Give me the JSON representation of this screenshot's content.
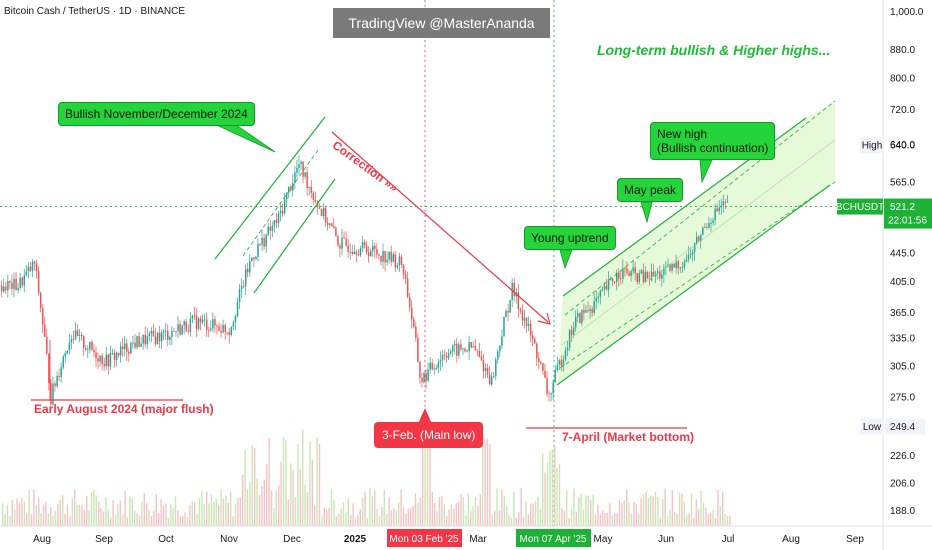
{
  "header": {
    "symbol_line": "Bitcoin Cash / TetherUS · 1D · BINANCE"
  },
  "watermark": "TradingView @MasterAnanda",
  "headline": "Long-term bullish & Higher highs...",
  "annotations": {
    "bullish_nov_dec": "Bullish November/December 2024",
    "correction": "Correction »»",
    "young_uptrend": "Young uptrend",
    "may_peak": "May peak",
    "new_high_line1": "New high",
    "new_high_line2": "(Bullish continuation)",
    "early_august": "Early August 2024 (major flush)",
    "main_low": "3-Feb. (Main low)",
    "market_bottom": "7-April (Market bottom)"
  },
  "price_tags": {
    "high_label": "High",
    "high_value": "640.0",
    "low_label": "Low",
    "low_value": "249.4",
    "symbol": "BCHUSDT",
    "last_price": "521.2",
    "countdown": "22:01:56"
  },
  "x_axis": {
    "labels": [
      "Aug",
      "Sep",
      "Oct",
      "Nov",
      "Dec",
      "2025",
      "Mar",
      "May",
      "Jun",
      "Jul",
      "Aug",
      "Sep"
    ],
    "highlight_feb": "Mon 03 Feb '25",
    "highlight_apr": "Mon 07 Apr '25"
  },
  "y_axis": {
    "ticks": [
      "1,000.0",
      "880.0",
      "800.0",
      "720.0",
      "640.0",
      "565.0",
      "521.2",
      "445.0",
      "405.0",
      "365.0",
      "335.0",
      "305.0",
      "275.0",
      "249.4",
      "226.0",
      "206.0",
      "188.0"
    ],
    "scale": "log"
  },
  "colors": {
    "up": "#26a69a",
    "down": "#ef5350",
    "green_up": "#1db236",
    "red_down": "#f23645",
    "channel": "#d6f5c0",
    "accent": "#24d43a"
  },
  "chart_data": {
    "type": "candlestick",
    "title": "Bitcoin Cash / TetherUS · 1D · BINANCE",
    "y_scale": "log",
    "ylim": [
      180,
      1000
    ],
    "x_range": [
      "2024-07-18",
      "2025-09-20"
    ],
    "series": [
      {
        "name": "BCHUSDT",
        "values_approx": [
          {
            "date": "2024-07-20",
            "close": 400
          },
          {
            "date": "2024-07-28",
            "close": 430
          },
          {
            "date": "2024-08-05",
            "close": 275
          },
          {
            "date": "2024-08-15",
            "close": 340
          },
          {
            "date": "2024-09-01",
            "close": 310
          },
          {
            "date": "2024-09-15",
            "close": 330
          },
          {
            "date": "2024-10-01",
            "close": 340
          },
          {
            "date": "2024-10-15",
            "close": 355
          },
          {
            "date": "2024-11-01",
            "close": 345
          },
          {
            "date": "2024-11-12",
            "close": 440
          },
          {
            "date": "2024-11-25",
            "close": 500
          },
          {
            "date": "2024-12-05",
            "close": 600
          },
          {
            "date": "2024-12-15",
            "close": 520
          },
          {
            "date": "2024-12-25",
            "close": 460
          },
          {
            "date": "2025-01-10",
            "close": 450
          },
          {
            "date": "2025-01-25",
            "close": 430
          },
          {
            "date": "2025-02-03",
            "close": 290
          },
          {
            "date": "2025-02-15",
            "close": 320
          },
          {
            "date": "2025-03-01",
            "close": 325
          },
          {
            "date": "2025-03-10",
            "close": 290
          },
          {
            "date": "2025-03-20",
            "close": 395
          },
          {
            "date": "2025-04-01",
            "close": 320
          },
          {
            "date": "2025-04-07",
            "close": 275
          },
          {
            "date": "2025-04-20",
            "close": 355
          },
          {
            "date": "2025-05-01",
            "close": 380
          },
          {
            "date": "2025-05-12",
            "close": 420
          },
          {
            "date": "2025-05-25",
            "close": 410
          },
          {
            "date": "2025-06-05",
            "close": 420
          },
          {
            "date": "2025-06-15",
            "close": 440
          },
          {
            "date": "2025-06-25",
            "close": 500
          },
          {
            "date": "2025-07-01",
            "close": 521.2
          }
        ]
      }
    ]
  }
}
